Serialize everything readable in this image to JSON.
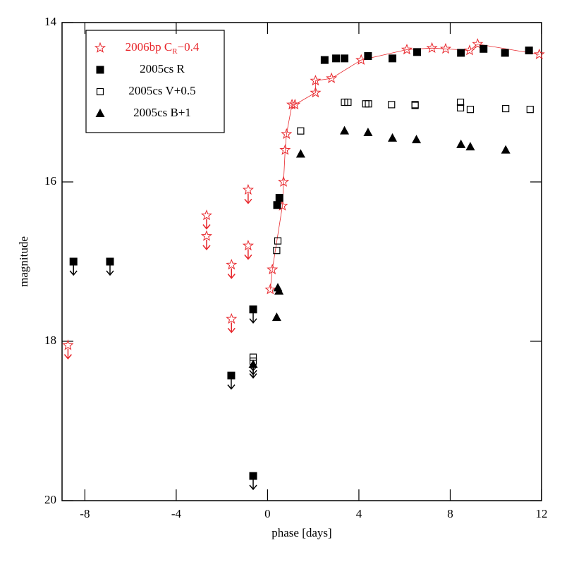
{
  "chart_data": {
    "type": "scatter",
    "xlabel": "phase [days]",
    "ylabel": "magnitude",
    "xlim": [
      -9,
      12
    ],
    "ylim": [
      20,
      14
    ],
    "xticks": [
      -8,
      -4,
      0,
      4,
      8,
      12
    ],
    "yticks": [
      14,
      16,
      18,
      20
    ],
    "series": [
      {
        "name": [
          "2006bp C",
          "R",
          "−0.4"
        ],
        "color": "#e8262b",
        "marker": "star",
        "line": true,
        "x": [
          0.12,
          0.21,
          0.65,
          0.7,
          0.77,
          0.83,
          1.07,
          1.2,
          2.1,
          2.1,
          2.8,
          4.1,
          6.1,
          7.2,
          7.8,
          8.85,
          9.2,
          11.9,
          -8.74,
          -2.67,
          -2.67,
          -1.58,
          -1.58,
          -0.85,
          -0.85
        ],
        "values": [
          17.35,
          17.1,
          16.3,
          16.0,
          15.6,
          15.4,
          15.03,
          15.03,
          14.88,
          14.73,
          14.7,
          14.47,
          14.34,
          14.32,
          14.33,
          14.35,
          14.27,
          14.4,
          18.05,
          16.42,
          16.68,
          17.04,
          17.72,
          16.1,
          16.8
        ],
        "upper_limit": [
          false,
          false,
          false,
          false,
          false,
          false,
          false,
          false,
          false,
          false,
          false,
          false,
          false,
          false,
          false,
          false,
          false,
          false,
          true,
          true,
          true,
          true,
          true,
          true,
          true
        ]
      },
      {
        "name": [
          "2005cs R"
        ],
        "color": "#000000",
        "marker": "square-filled",
        "line": false,
        "x": [
          0.42,
          0.52,
          2.5,
          3.0,
          3.37,
          4.4,
          5.47,
          6.55,
          8.47,
          9.46,
          10.4,
          11.45,
          -8.5,
          -6.9,
          -0.63,
          -1.59,
          -0.63
        ],
        "values": [
          16.29,
          16.2,
          14.47,
          14.45,
          14.45,
          14.42,
          14.45,
          14.37,
          14.38,
          14.33,
          14.38,
          14.35,
          17.0,
          17.0,
          17.6,
          18.43,
          19.69
        ],
        "upper_limit": [
          false,
          false,
          false,
          false,
          false,
          false,
          false,
          false,
          false,
          false,
          false,
          false,
          true,
          true,
          true,
          true,
          true
        ]
      },
      {
        "name": [
          "2005cs V+0.5"
        ],
        "color": "#000000",
        "marker": "square-open",
        "line": false,
        "x": [
          0.4,
          0.45,
          1.45,
          3.37,
          3.52,
          4.3,
          4.42,
          5.43,
          6.46,
          6.46,
          8.45,
          8.45,
          8.88,
          10.43,
          11.5,
          -0.63,
          -0.63
        ],
        "values": [
          16.86,
          16.74,
          15.36,
          15.0,
          15.0,
          15.02,
          15.02,
          15.03,
          15.04,
          15.03,
          15.0,
          15.07,
          15.09,
          15.08,
          15.09,
          18.2,
          18.25
        ],
        "upper_limit": [
          false,
          false,
          false,
          false,
          false,
          false,
          false,
          false,
          false,
          false,
          false,
          false,
          false,
          false,
          false,
          true,
          true
        ]
      },
      {
        "name": [
          "2005cs B+1"
        ],
        "color": "#000000",
        "marker": "triangle",
        "line": false,
        "x": [
          0.4,
          0.45,
          0.5,
          1.45,
          3.37,
          4.4,
          5.47,
          6.52,
          8.47,
          8.88,
          10.43,
          -0.63
        ],
        "values": [
          17.7,
          17.33,
          17.37,
          15.65,
          15.36,
          15.38,
          15.45,
          15.47,
          15.53,
          15.56,
          15.6,
          18.29
        ],
        "upper_limit": [
          false,
          false,
          false,
          false,
          false,
          false,
          false,
          false,
          false,
          false,
          false,
          true
        ]
      }
    ]
  }
}
